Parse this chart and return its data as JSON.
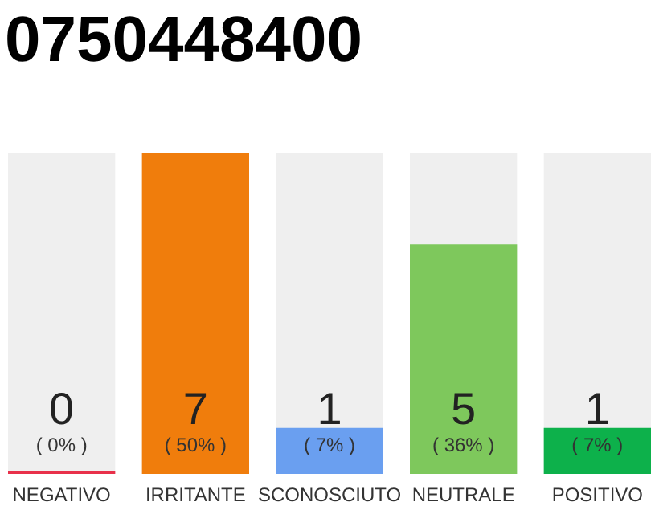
{
  "chart_data": {
    "type": "bar",
    "title": "0750448400",
    "categories": [
      "NEGATIVO",
      "IRRITANTE",
      "SCONOSCIUTO",
      "NEUTRALE",
      "POSITIVO"
    ],
    "values": [
      0,
      7,
      1,
      5,
      1
    ],
    "colors": [
      "#e8304a",
      "#f07d0c",
      "#6a9ff0",
      "#7ec85c",
      "#0db14b"
    ],
    "ylim": [
      0,
      7
    ],
    "tick_labels": "x",
    "data_labels": true,
    "annotations": [
      "( 0% )",
      "( 50% )",
      "( 7% )",
      "( 36% )",
      "( 7% )"
    ]
  }
}
